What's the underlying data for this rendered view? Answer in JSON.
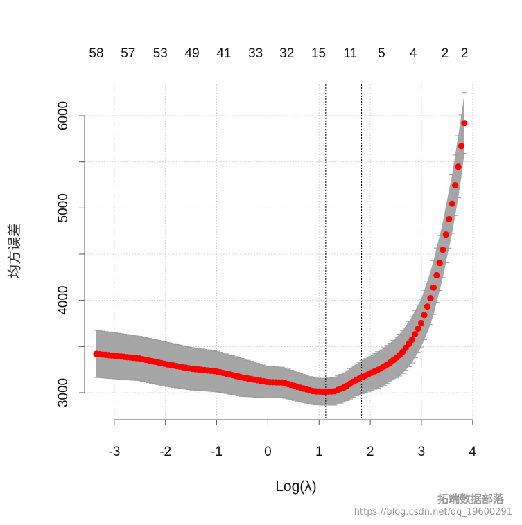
{
  "chart_data": {
    "type": "line",
    "xlabel": "Log(λ)",
    "ylabel": "均方误差",
    "x_ticks": [
      "-3",
      "-2",
      "-1",
      "0",
      "1",
      "2",
      "3",
      "4"
    ],
    "y_ticks": [
      "3000",
      "4000",
      "5000",
      "6000"
    ],
    "top_axis_labels": [
      "58",
      "57",
      "53",
      "49",
      "41",
      "33",
      "32",
      "15",
      "11",
      "5",
      "4",
      "2",
      "2"
    ],
    "top_axis_positions": [
      -3.35,
      -2.73,
      -2.1,
      -1.48,
      -0.86,
      -0.24,
      0.37,
      0.99,
      1.61,
      2.22,
      2.84,
      3.46,
      3.84
    ],
    "xlim": [
      -3.35,
      3.84
    ],
    "ylim": [
      2900,
      6250
    ],
    "lambda_min_log": 1.13,
    "lambda_1se_log": 1.83,
    "series": [
      {
        "x": [
          -3.35,
          -3.0,
          -2.5,
          -2.0,
          -1.5,
          -1.0,
          -0.5,
          0.0,
          0.3,
          0.6,
          0.9,
          1.1,
          1.3,
          1.5,
          1.7,
          2.0,
          2.2,
          2.4,
          2.6,
          2.8,
          3.0,
          3.2,
          3.4,
          3.6,
          3.75,
          3.84
        ],
        "mean": [
          3420,
          3400,
          3370,
          3310,
          3260,
          3230,
          3165,
          3115,
          3110,
          3060,
          3015,
          3010,
          3015,
          3060,
          3130,
          3210,
          3260,
          3330,
          3420,
          3560,
          3760,
          4060,
          4500,
          5050,
          5550,
          5920
        ],
        "upper": [
          3675,
          3650,
          3610,
          3550,
          3490,
          3450,
          3370,
          3285,
          3275,
          3215,
          3160,
          3155,
          3165,
          3220,
          3300,
          3400,
          3460,
          3540,
          3650,
          3810,
          4020,
          4350,
          4800,
          5370,
          5890,
          6250
        ],
        "lower": [
          3165,
          3150,
          3130,
          3070,
          3030,
          3010,
          2960,
          2945,
          2945,
          2905,
          2870,
          2865,
          2865,
          2900,
          2960,
          3020,
          3060,
          3120,
          3190,
          3310,
          3500,
          3770,
          4200,
          4730,
          5210,
          5590
        ]
      }
    ]
  },
  "watermark": {
    "brand": "拓端数据部落",
    "url": "https://blog.csdn.net/qq_19600291"
  }
}
